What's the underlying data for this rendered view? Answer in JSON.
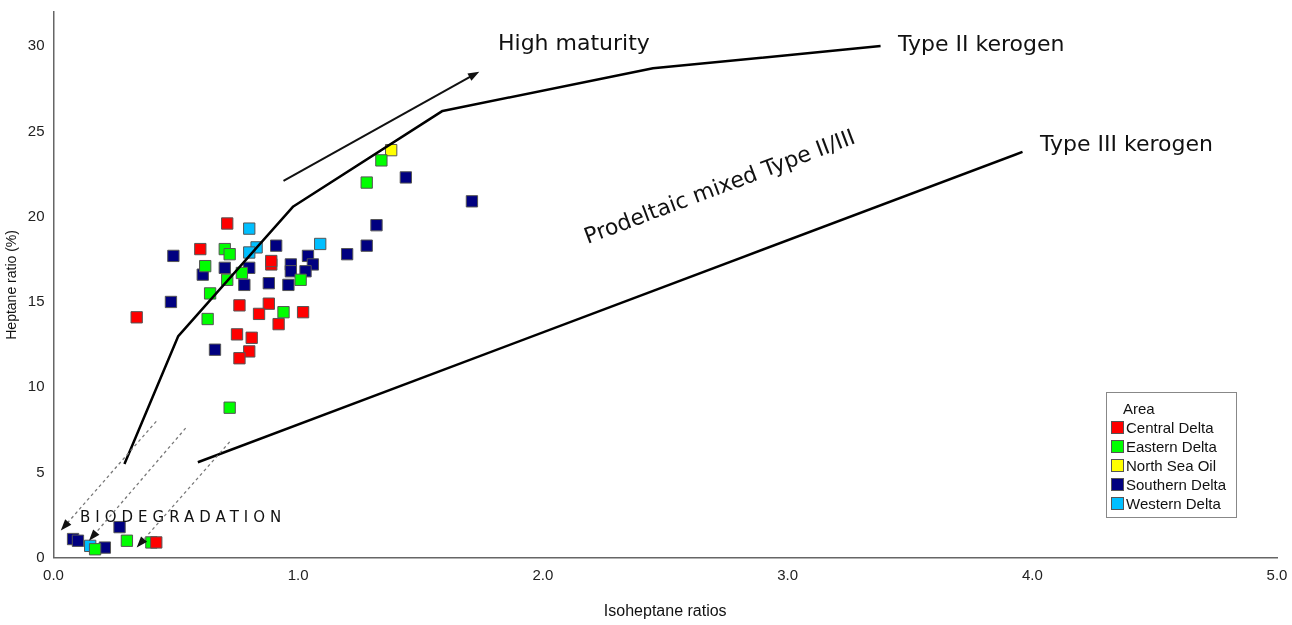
{
  "chart_data": {
    "type": "scatter",
    "xlabel": "Isoheptane ratios",
    "ylabel": "Heptane ratio (%)",
    "legend_title": "Area",
    "legend": "bottom right",
    "marker": "square",
    "grid": false,
    "xlim": [
      0,
      5
    ],
    "ylim": [
      0,
      32
    ],
    "xticks": [
      {
        "value": 0,
        "label": "0.0"
      },
      {
        "value": 1,
        "label": "1.0"
      },
      {
        "value": 2,
        "label": "2.0"
      },
      {
        "value": 3,
        "label": "3.0"
      },
      {
        "value": 4,
        "label": "4.0"
      },
      {
        "value": 5,
        "label": "5.0"
      }
    ],
    "yticks": [
      0,
      5,
      10,
      15,
      20,
      25,
      30
    ],
    "annotations": [
      "High maturity",
      "Type II kerogen",
      "Type III kerogen",
      "Prodeltaic mixed Type II/III",
      "BIODEGRADATION"
    ],
    "series": [
      {
        "type": "line",
        "color": "#000000",
        "marker": "none",
        "x": [
          0.29,
          0.51,
          0.98,
          1.59,
          2.45,
          3.38
        ],
        "values": [
          5.5,
          13.0,
          20.6,
          26.2,
          28.7,
          30.0
        ]
      },
      {
        "type": "line",
        "color": "#000000",
        "marker": "none",
        "x": [
          0.59,
          3.96
        ],
        "values": [
          5.6,
          23.8
        ]
      },
      {
        "name": "Central Delta",
        "color": "#ff0000",
        "x": [
          0.34,
          0.6,
          0.71,
          0.89,
          0.89,
          0.76,
          0.88,
          0.84,
          1.02,
          0.92,
          0.75,
          0.81,
          0.8,
          0.76,
          0.42
        ],
        "values": [
          14.1,
          18.1,
          19.6,
          17.2,
          17.4,
          14.8,
          14.9,
          14.3,
          14.4,
          13.7,
          13.1,
          12.9,
          12.1,
          11.7,
          0.9
        ]
      },
      {
        "name": "Eastern Delta",
        "color": "#00ff00",
        "x": [
          1.34,
          1.28,
          0.7,
          0.72,
          0.62,
          0.77,
          0.71,
          1.01,
          0.64,
          0.94,
          0.63,
          0.72,
          0.3,
          0.17,
          0.4
        ],
        "values": [
          23.3,
          22.0,
          18.1,
          17.8,
          17.1,
          16.7,
          16.3,
          16.3,
          15.5,
          14.4,
          14.0,
          8.8,
          1.0,
          0.5,
          0.9
        ]
      },
      {
        "name": "North Sea Oil",
        "color": "#ffff00",
        "x": [
          1.38
        ],
        "values": [
          23.9
        ]
      },
      {
        "name": "Southern Delta",
        "color": "#000080",
        "x": [
          1.44,
          1.71,
          1.32,
          1.28,
          1.2,
          0.91,
          0.49,
          1.04,
          1.06,
          1.03,
          0.97,
          0.97,
          0.7,
          0.8,
          0.61,
          0.78,
          0.88,
          0.96,
          0.48,
          0.66,
          0.08,
          0.1,
          0.21,
          0.27
        ],
        "values": [
          22.3,
          20.9,
          19.5,
          18.3,
          17.8,
          18.3,
          17.7,
          17.7,
          17.2,
          16.8,
          17.2,
          16.8,
          17.0,
          17.0,
          16.6,
          16.0,
          16.1,
          16.0,
          15.0,
          12.2,
          1.1,
          1.0,
          0.6,
          1.8
        ]
      },
      {
        "name": "Western Delta",
        "color": "#00bfff",
        "x": [
          0.8,
          0.83,
          0.8,
          1.09,
          0.15
        ],
        "values": [
          19.3,
          18.2,
          17.9,
          18.4,
          0.7
        ]
      }
    ]
  }
}
